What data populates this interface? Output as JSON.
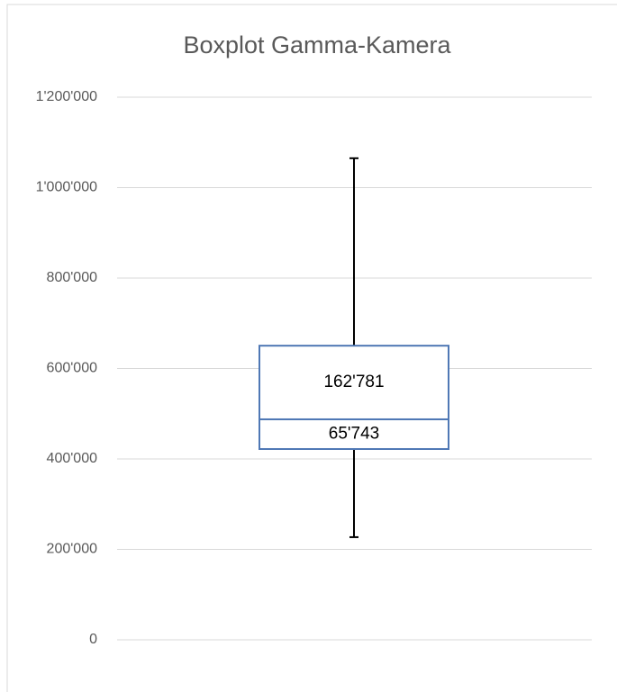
{
  "chart_data": {
    "type": "boxplot",
    "title": "Boxplot Gamma-Kamera",
    "base": 421900,
    "values": [
      65743,
      162781
    ],
    "value_labels": [
      "65'743",
      "162'781"
    ],
    "whisker_low": 227000,
    "whisker_high": 1065000,
    "box_color": "#4f78b5",
    "whisker_color": "#000000",
    "ylim": [
      0,
      1200000
    ],
    "yticks": [
      0,
      {
        "value": 200000,
        "label": "200'000"
      },
      {
        "value": 400000,
        "label": "400'000"
      },
      {
        "value": 600000,
        "label": "600'000"
      },
      {
        "value": 800000,
        "label": "800'000"
      },
      {
        "value": 1000000,
        "label": "1'000'000"
      },
      {
        "value": 1200000,
        "label": "1'200'000"
      }
    ],
    "grid": true
  }
}
